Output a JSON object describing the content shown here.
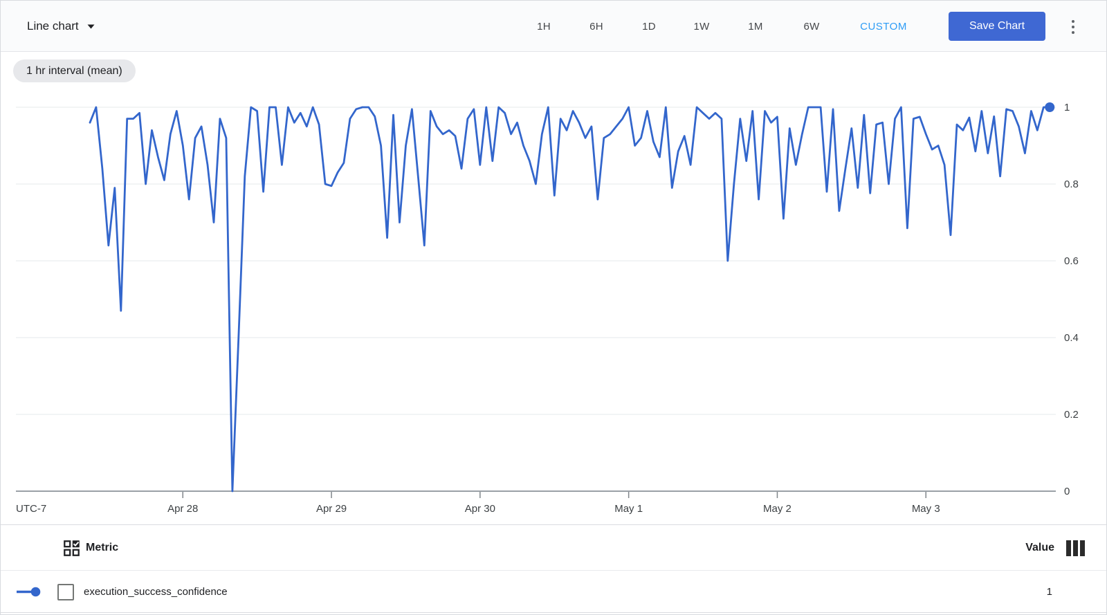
{
  "header": {
    "chart_type": "Line chart",
    "time_range_buttons": [
      "1H",
      "6H",
      "1D",
      "1W",
      "1M",
      "6W"
    ],
    "custom_button": "CUSTOM",
    "save_button": "Save Chart"
  },
  "filter_chip": "1 hr interval (mean)",
  "chart_data": {
    "type": "line",
    "title": "",
    "interval_note": "1 hr interval (mean)",
    "x_axis": {
      "timezone_label": "UTC-7",
      "tick_labels": [
        "Apr 28",
        "Apr 29",
        "Apr 30",
        "May 1",
        "May 2",
        "May 3"
      ],
      "tick_hour_offsets": [
        15,
        39,
        63,
        87,
        111,
        135
      ],
      "interval_hours": 1
    },
    "y_axis": {
      "tick_labels": [
        "0",
        "0.2",
        "0.4",
        "0.6",
        "0.8",
        "1"
      ],
      "tick_values": [
        0,
        0.2,
        0.4,
        0.6,
        0.8,
        1
      ],
      "range": [
        0,
        1
      ]
    },
    "grid": true,
    "legend_position": "bottom-table",
    "series": [
      {
        "name": "execution_success_confidence",
        "color": "#3366cc",
        "last_point_marker": true,
        "values": [
          0.96,
          1.0,
          0.84,
          0.64,
          0.79,
          0.47,
          0.97,
          0.97,
          0.985,
          0.8,
          0.94,
          0.87,
          0.81,
          0.93,
          0.99,
          0.9,
          0.76,
          0.92,
          0.95,
          0.85,
          0.7,
          0.97,
          0.92,
          0.0,
          0.4,
          0.82,
          1.0,
          0.99,
          0.78,
          1.0,
          1.0,
          0.85,
          1.0,
          0.96,
          0.985,
          0.95,
          1.0,
          0.955,
          0.8,
          0.795,
          0.83,
          0.855,
          0.97,
          0.995,
          1.0,
          1.0,
          0.976,
          0.9,
          0.66,
          0.98,
          0.7,
          0.9,
          0.995,
          0.82,
          0.64,
          0.99,
          0.95,
          0.93,
          0.94,
          0.925,
          0.84,
          0.97,
          0.995,
          0.85,
          1.0,
          0.86,
          1.0,
          0.985,
          0.93,
          0.96,
          0.9,
          0.86,
          0.8,
          0.93,
          1.0,
          0.77,
          0.97,
          0.94,
          0.99,
          0.96,
          0.92,
          0.95,
          0.76,
          0.92,
          0.93,
          0.95,
          0.97,
          1.0,
          0.9,
          0.92,
          0.99,
          0.91,
          0.87,
          1.0,
          0.79,
          0.885,
          0.925,
          0.85,
          1.0,
          0.985,
          0.97,
          0.985,
          0.97,
          0.6,
          0.8,
          0.97,
          0.86,
          0.99,
          0.76,
          0.99,
          0.96,
          0.975,
          0.71,
          0.945,
          0.85,
          0.93,
          1.0,
          1.0,
          1.0,
          0.78,
          0.995,
          0.73,
          0.84,
          0.945,
          0.79,
          0.98,
          0.776,
          0.955,
          0.96,
          0.8,
          0.97,
          1.0,
          0.685,
          0.97,
          0.975,
          0.93,
          0.89,
          0.9,
          0.85,
          0.667,
          0.955,
          0.94,
          0.973,
          0.885,
          0.99,
          0.88,
          0.976,
          0.82,
          0.995,
          0.99,
          0.95,
          0.88,
          0.99,
          0.94,
          1.0,
          1.0
        ]
      }
    ]
  },
  "table": {
    "metric_header": "Metric",
    "value_header": "Value",
    "rows": [
      {
        "metric": "execution_success_confidence",
        "value": "1",
        "color": "#3366cc",
        "checked": false
      }
    ]
  },
  "colors": {
    "line": "#3366cc",
    "save_button_bg": "#3f68d3",
    "custom_blue": "#2e9cf5",
    "chip_bg": "#e7e8eb",
    "grid_line": "#ebedef",
    "axis_line": "#9aa0a6",
    "text_primary": "#202124",
    "text_secondary": "#3c4043"
  }
}
